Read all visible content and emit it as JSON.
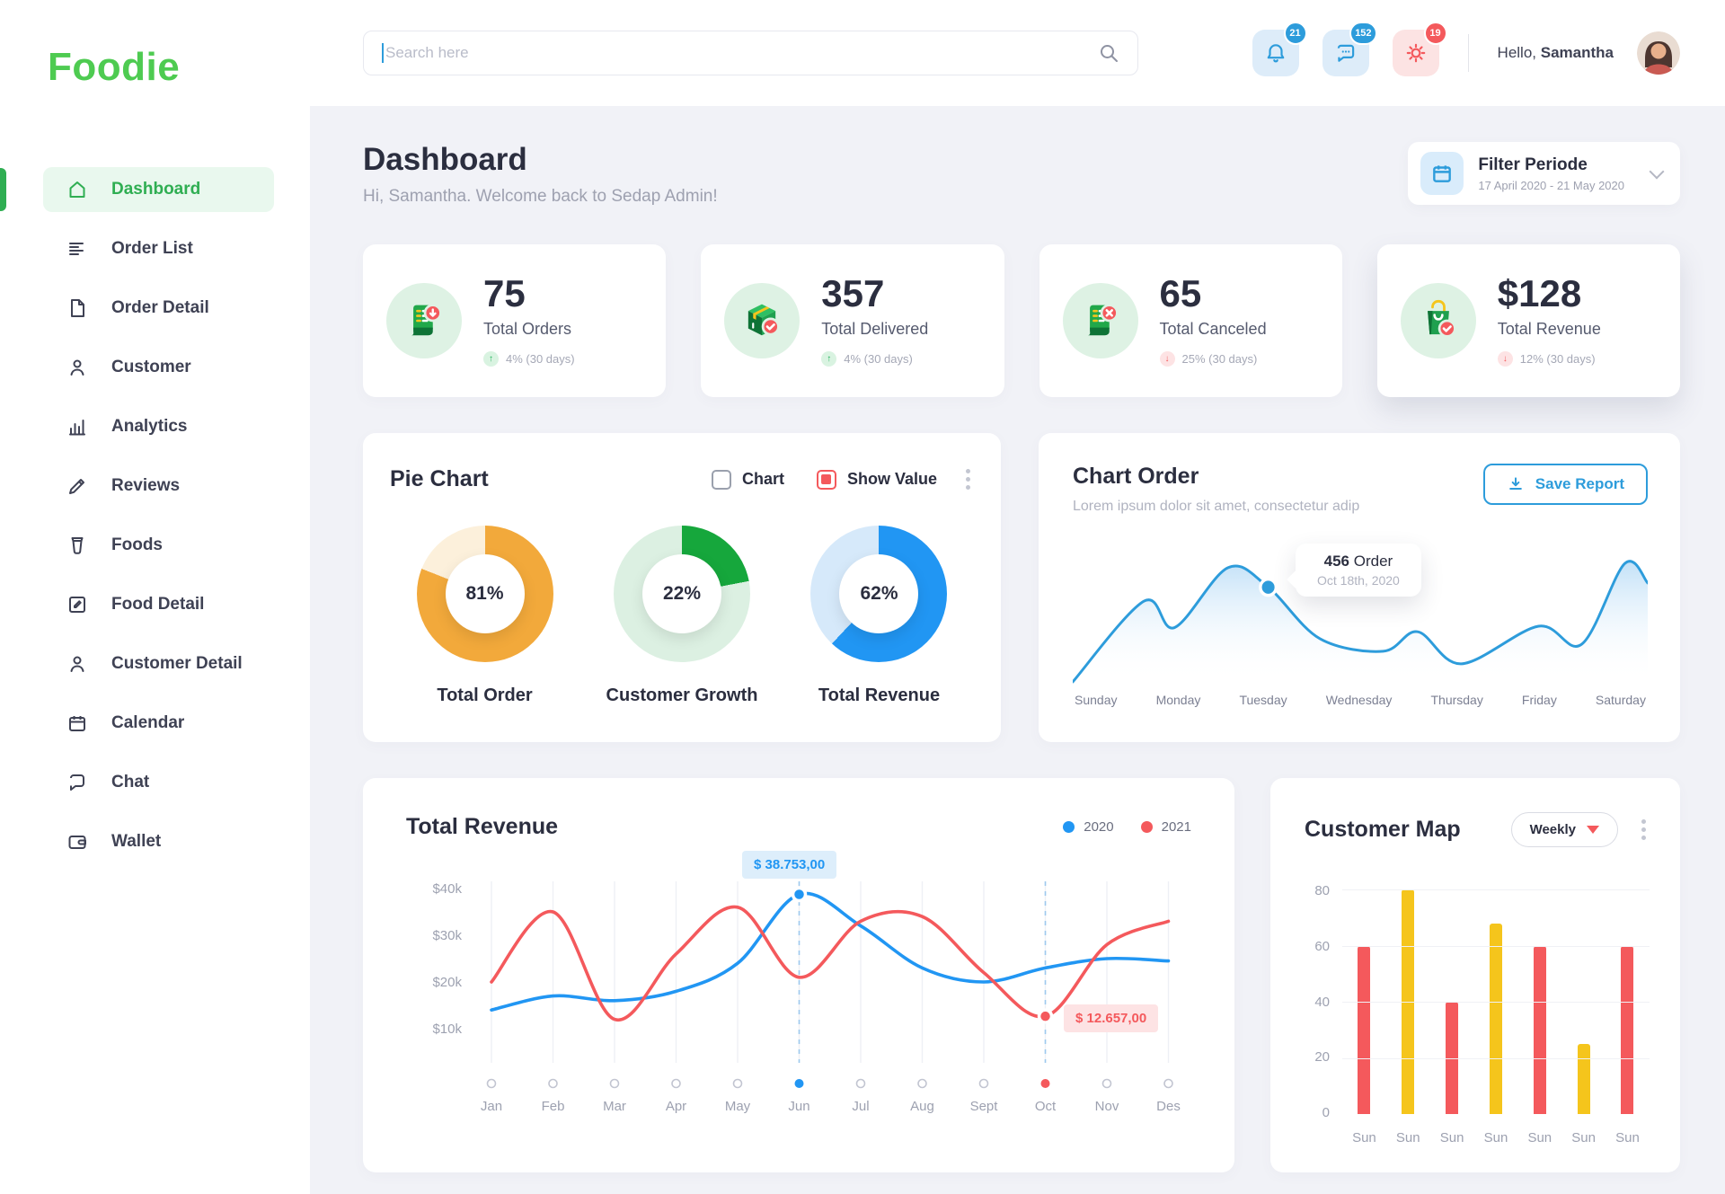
{
  "brand": {
    "name": "Foodie",
    "color": "#4ECB51"
  },
  "topbar": {
    "search_placeholder": "Search here",
    "notification_count": "21",
    "message_count": "152",
    "settings_count": "19",
    "greeting": "Hello,",
    "username": "Samantha"
  },
  "sidebar": {
    "items": [
      {
        "label": "Dashboard",
        "active": true
      },
      {
        "label": "Order List"
      },
      {
        "label": "Order Detail"
      },
      {
        "label": "Customer"
      },
      {
        "label": "Analytics"
      },
      {
        "label": "Reviews"
      },
      {
        "label": "Foods"
      },
      {
        "label": "Food Detail"
      },
      {
        "label": "Customer Detail"
      },
      {
        "label": "Calendar"
      },
      {
        "label": "Chat"
      },
      {
        "label": "Wallet"
      }
    ]
  },
  "header": {
    "title": "Dashboard",
    "subtitle": "Hi, Samantha. Welcome back  to Sedap Admin!",
    "filter_title": "Filter Periode",
    "filter_range": "17 April 2020 - 21 May 2020"
  },
  "stats": [
    {
      "value": "75",
      "label": "Total Orders",
      "delta": "4% (30 days)",
      "trend": "up"
    },
    {
      "value": "357",
      "label": "Total Delivered",
      "delta": "4% (30 days)",
      "trend": "up"
    },
    {
      "value": "65",
      "label": "Total Canceled",
      "delta": "25% (30 days)",
      "trend": "down"
    },
    {
      "value": "$128",
      "label": "Total Revenue",
      "delta": "12% (30 days)",
      "trend": "down"
    }
  ],
  "pie_card": {
    "title": "Pie Chart",
    "option_chart": "Chart",
    "option_show_value": "Show Value",
    "donuts": [
      {
        "percent": 81,
        "display": "81%",
        "label": "Total Order",
        "color": "#F2A93B",
        "track": "#FCF0DB"
      },
      {
        "percent": 22,
        "display": "22%",
        "label": "Customer Growth",
        "color": "#16A73C",
        "track": "#DCF0E2"
      },
      {
        "percent": 62,
        "display": "62%",
        "label": "Total Revenue",
        "color": "#2196F3",
        "track": "#D6E9FA"
      }
    ]
  },
  "chart_order": {
    "title": "Chart Order",
    "subtitle": "Lorem ipsum dolor sit amet, consectetur adip",
    "button": "Save Report",
    "tooltip_value": "456",
    "tooltip_unit": "Order",
    "tooltip_date": "Oct 18th, 2020"
  },
  "revenue_card": {
    "title": "Total Revenue",
    "tooltip_2020": "$ 38.753,00",
    "tooltip_2021": "$ 12.657,00"
  },
  "customer_map": {
    "title": "Customer Map",
    "range_selector": "Weekly"
  },
  "chart_data": [
    {
      "type": "pie",
      "title": "Total Order",
      "values": [
        81,
        19
      ],
      "labels": [
        "value",
        "remainder"
      ],
      "center_label": "81%"
    },
    {
      "type": "pie",
      "title": "Customer Growth",
      "values": [
        22,
        78
      ],
      "labels": [
        "value",
        "remainder"
      ],
      "center_label": "22%"
    },
    {
      "type": "pie",
      "title": "Total Revenue",
      "values": [
        62,
        38
      ],
      "labels": [
        "value",
        "remainder"
      ],
      "center_label": "62%"
    },
    {
      "type": "area",
      "title": "Chart Order",
      "x": [
        "Sunday",
        "Monday",
        "Tuesday",
        "Wednesday",
        "Thursday",
        "Friday",
        "Saturday"
      ],
      "points_norm": [
        [
          0,
          0
        ],
        [
          12.4,
          58
        ],
        [
          17.7,
          39
        ],
        [
          27,
          82
        ],
        [
          34,
          68
        ],
        [
          43,
          31
        ],
        [
          54,
          22
        ],
        [
          60,
          36
        ],
        [
          67.6,
          13
        ],
        [
          81,
          40
        ],
        [
          88.5,
          27
        ],
        [
          96,
          85
        ],
        [
          100,
          71
        ]
      ],
      "marker": {
        "x": 34,
        "y": 68,
        "label": "456 Order",
        "date": "Oct 18th, 2020"
      },
      "line_color": "#2D9CDB"
    },
    {
      "type": "line",
      "title": "Total Revenue",
      "x": [
        "Jan",
        "Feb",
        "Mar",
        "Apr",
        "May",
        "Jun",
        "Jul",
        "Aug",
        "Sept",
        "Oct",
        "Nov",
        "Des"
      ],
      "ylabels": [
        "$40k",
        "$30k",
        "$20k",
        "$10k"
      ],
      "ylim": [
        0,
        45000
      ],
      "series": [
        {
          "name": "2020",
          "color": "#2196F3",
          "values": [
            14000,
            17000,
            16000,
            18000,
            24000,
            38753,
            32000,
            23000,
            20000,
            23000,
            25000,
            24500
          ]
        },
        {
          "name": "2021",
          "color": "#F4595C",
          "values": [
            20000,
            35000,
            12000,
            26000,
            36000,
            21000,
            33000,
            34000,
            22000,
            12657,
            28000,
            33000
          ]
        }
      ],
      "highlight": [
        {
          "series": "2020",
          "month_index": 5,
          "label": "$ 38.753,00"
        },
        {
          "series": "2021",
          "month_index": 9,
          "label": "$ 12.657,00"
        }
      ],
      "legend_position": "top-right",
      "grid": "vertical"
    },
    {
      "type": "bar",
      "title": "Customer Map",
      "categories": [
        "Sun",
        "Sun",
        "Sun",
        "Sun",
        "Sun",
        "Sun",
        "Sun"
      ],
      "values": [
        60,
        80,
        40,
        68,
        60,
        25,
        60
      ],
      "colors": [
        "#F4595C",
        "#F5C51C",
        "#F4595C",
        "#F5C51C",
        "#F4595C",
        "#F5C51C",
        "#F4595C"
      ],
      "yticks": [
        0,
        20,
        40,
        60,
        80
      ],
      "ylim": [
        0,
        80
      ],
      "grid": "horizontal"
    }
  ]
}
